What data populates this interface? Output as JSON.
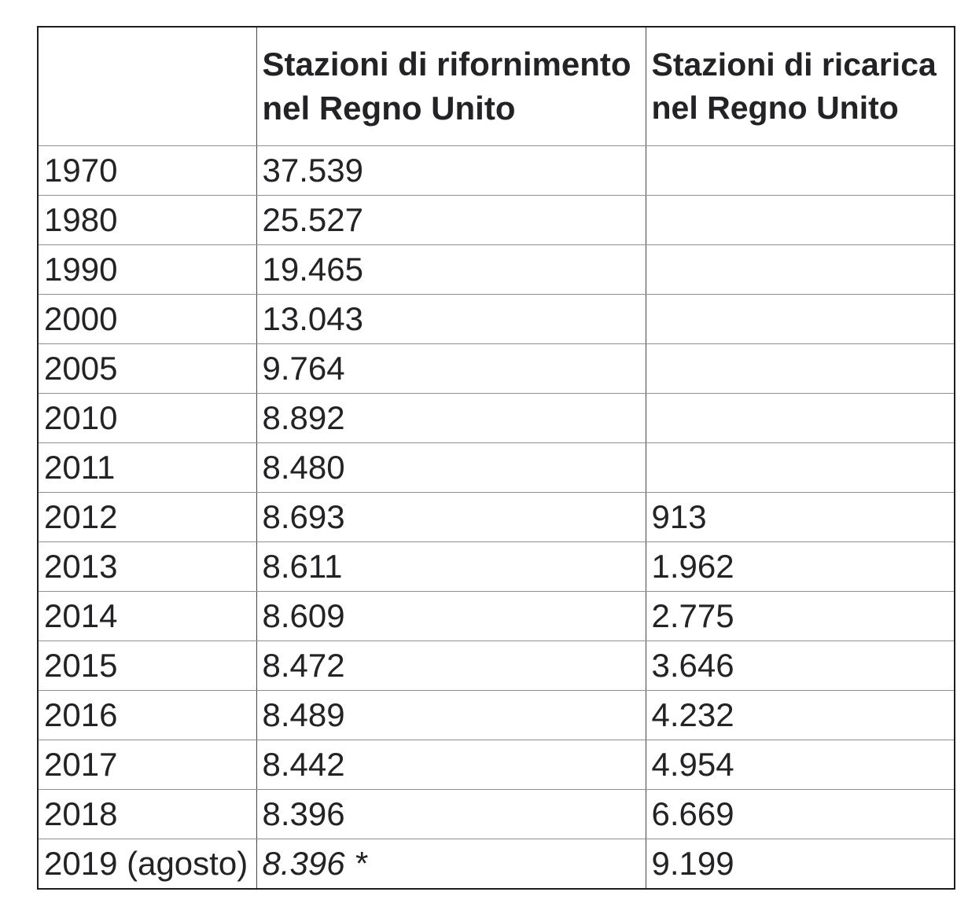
{
  "colors": {
    "background": "#ffffff",
    "text": "#232325",
    "outer_border": "#1e1e20",
    "vertical_border": "#47474b",
    "horizontal_border": "#8f8f8f"
  },
  "chart_data": {
    "type": "table",
    "columns": [
      "",
      "Stazioni di rifornimento nel Regno Unito",
      "Stazioni di ricarica nel Regno Unito"
    ],
    "rows": [
      [
        "1970",
        "37.539",
        ""
      ],
      [
        "1980",
        "25.527",
        ""
      ],
      [
        "1990",
        "19.465",
        ""
      ],
      [
        "2000",
        "13.043",
        ""
      ],
      [
        "2005",
        "9.764",
        ""
      ],
      [
        "2010",
        "8.892",
        ""
      ],
      [
        "2011",
        "8.480",
        ""
      ],
      [
        "2012",
        "8.693",
        "913"
      ],
      [
        "2013",
        "8.611",
        "1.962"
      ],
      [
        "2014",
        "8.609",
        "2.775"
      ],
      [
        "2015",
        "8.472",
        "3.646"
      ],
      [
        "2016",
        "8.489",
        "4.232"
      ],
      [
        "2017",
        "8.442",
        "4.954"
      ],
      [
        "2018",
        "8.396",
        "6.669"
      ],
      [
        "2019 (agosto)",
        "8.396 *",
        "9.199"
      ]
    ]
  }
}
